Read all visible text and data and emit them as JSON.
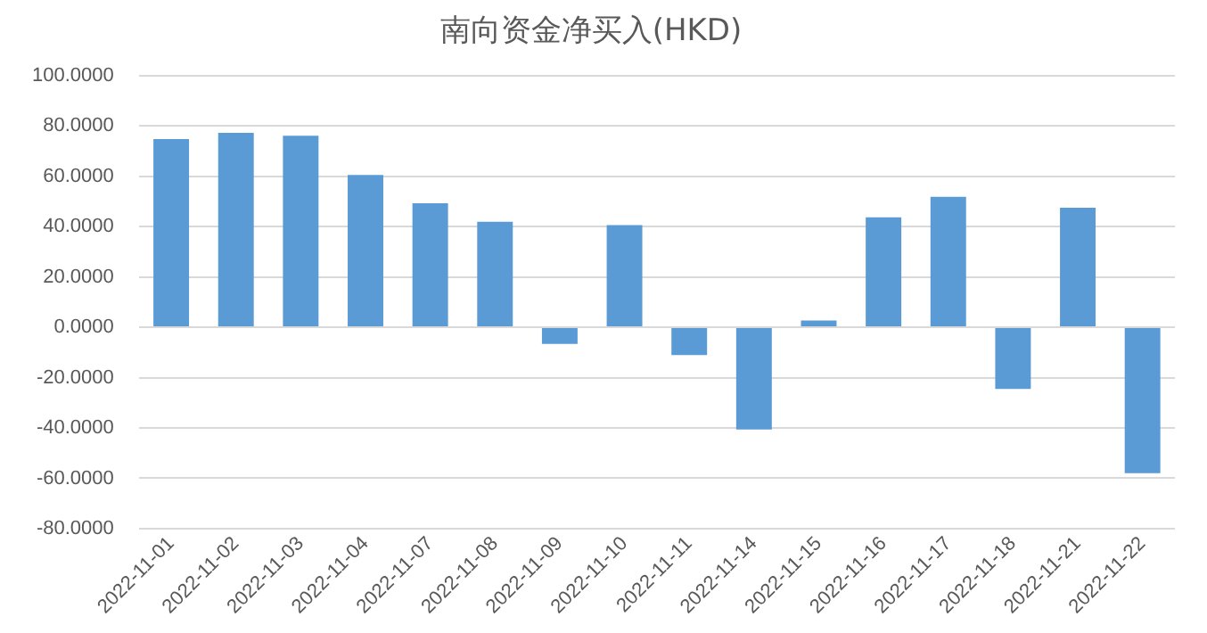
{
  "chart_data": {
    "type": "bar",
    "title": "南向资金净买入(HKD)",
    "categories": [
      "2022-11-01",
      "2022-11-02",
      "2022-11-03",
      "2022-11-04",
      "2022-11-07",
      "2022-11-08",
      "2022-11-09",
      "2022-11-10",
      "2022-11-11",
      "2022-11-14",
      "2022-11-15",
      "2022-11-16",
      "2022-11-17",
      "2022-11-18",
      "2022-11-21",
      "2022-11-22"
    ],
    "values": [
      74.8,
      77.3,
      76.1,
      60.5,
      49.3,
      41.9,
      -6.6,
      40.6,
      -11,
      -40.6,
      2.7,
      43.7,
      51.8,
      -24.5,
      47.5,
      -58
    ],
    "color": "#5b9bd5",
    "ylim": [
      -80,
      100
    ],
    "yticks": [
      {
        "value": -80,
        "label": "-80.0000"
      },
      {
        "value": -60,
        "label": "-60.0000"
      },
      {
        "value": -40,
        "label": "-40.0000"
      },
      {
        "value": -20,
        "label": "-20.0000"
      },
      {
        "value": 0,
        "label": "0.0000"
      },
      {
        "value": 20,
        "label": "20.0000"
      },
      {
        "value": 40,
        "label": "40.0000"
      },
      {
        "value": 60,
        "label": "60.0000"
      },
      {
        "value": 80,
        "label": "80.0000"
      },
      {
        "value": 100,
        "label": "100.0000"
      }
    ],
    "grid": "y",
    "legend": false
  }
}
